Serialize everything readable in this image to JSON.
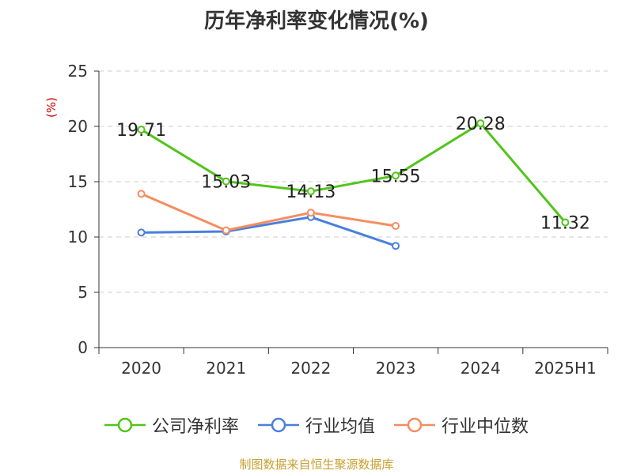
{
  "chart_data": {
    "type": "line",
    "title": "历年净利率变化情况(%)",
    "ylabel": "(%)",
    "categories": [
      "2020",
      "2021",
      "2022",
      "2023",
      "2024",
      "2025H1"
    ],
    "ylim": [
      0,
      25
    ],
    "yticks": [
      0,
      5,
      10,
      15,
      20,
      25
    ],
    "grid": true,
    "legend_position": "bottom",
    "series": [
      {
        "name": "公司净利率",
        "color": "#52c41a",
        "values": [
          19.71,
          15.03,
          14.13,
          15.55,
          20.28,
          11.32
        ],
        "show_labels": true
      },
      {
        "name": "行业均值",
        "color": "#4a7fdc",
        "values": [
          10.4,
          10.5,
          11.8,
          9.2,
          null,
          null
        ],
        "show_labels": false
      },
      {
        "name": "行业中位数",
        "color": "#f58d5f",
        "values": [
          13.9,
          10.6,
          12.2,
          11.0,
          null,
          null
        ],
        "show_labels": false
      }
    ]
  },
  "footer": "制图数据来自恒生聚源数据库"
}
